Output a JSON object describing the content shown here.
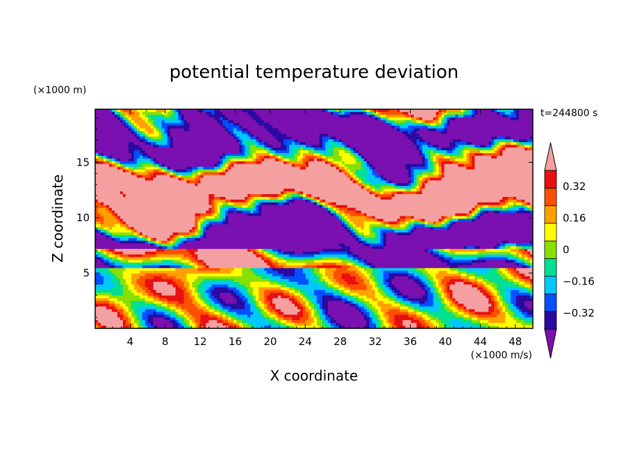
{
  "chart_data": {
    "type": "heatmap",
    "title": "potential temperature deviation",
    "xlabel": "X coordinate",
    "ylabel": "Z coordinate",
    "x_unit": "(×1000 m/s)",
    "y_unit": "(×1000 m)",
    "time_label": "t=244800 s",
    "xlim": [
      0,
      50
    ],
    "ylim": [
      0,
      19.8
    ],
    "x_ticks": [
      "4",
      "8",
      "12",
      "16",
      "20",
      "24",
      "28",
      "32",
      "36",
      "40",
      "44",
      "48"
    ],
    "y_ticks": [
      "5",
      "10",
      "15"
    ],
    "colorbar": {
      "levels": [
        -0.4,
        -0.32,
        -0.24,
        -0.16,
        -0.08,
        0,
        0.08,
        0.16,
        0.24,
        0.32,
        0.4
      ],
      "tick_labels": [
        "0.32",
        "0.16",
        "0",
        "−0.16",
        "−0.32"
      ],
      "colors": [
        "#7a10b0",
        "#2a0aa0",
        "#0050ff",
        "#00c8ff",
        "#00e090",
        "#88e000",
        "#ffff00",
        "#ffa000",
        "#ff5000",
        "#e81010",
        "#f4a0a0"
      ]
    }
  }
}
